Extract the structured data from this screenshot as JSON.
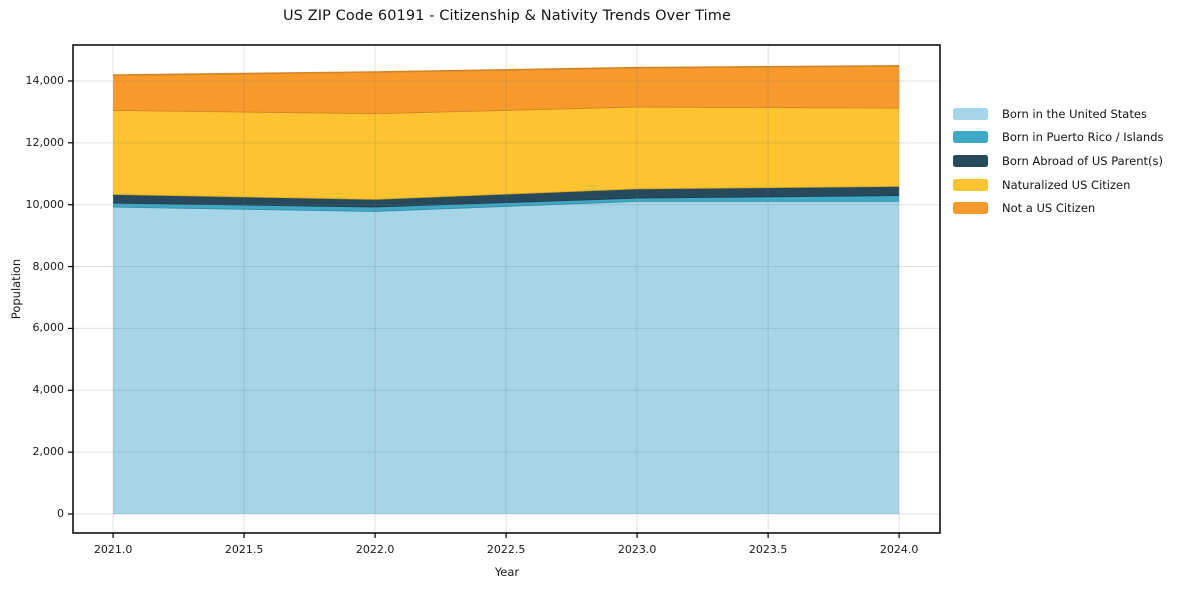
{
  "chart_data": {
    "type": "area",
    "stacked": true,
    "title": "US ZIP Code 60191 - Citizenship & Nativity Trends Over Time",
    "xlabel": "Year",
    "ylabel": "Population",
    "x": [
      2021,
      2022,
      2023,
      2024
    ],
    "series": [
      {
        "name": "Born in the United States",
        "color": "#a6d5e8",
        "values": [
          9935,
          9795,
          10120,
          10120
        ]
      },
      {
        "name": "Born in Puerto Rico / Islands",
        "color": "#3fa8c4",
        "values": [
          130,
          140,
          105,
          185
        ]
      },
      {
        "name": "Born Abroad of US Parent(s)",
        "color": "#27495c",
        "values": [
          280,
          250,
          300,
          300
        ]
      },
      {
        "name": "Naturalized US Citizen",
        "color": "#fdc330",
        "values": [
          2715,
          2770,
          2645,
          2530
        ]
      },
      {
        "name": "Not a US Citizen",
        "color": "#f89a2b",
        "values": [
          1130,
          1335,
          1260,
          1355
        ]
      }
    ],
    "xticks": {
      "values": [
        2021.0,
        2021.5,
        2022.0,
        2022.5,
        2023.0,
        2023.5,
        2024.0
      ],
      "labels": [
        "2021.0",
        "2021.5",
        "2022.0",
        "2022.5",
        "2023.0",
        "2023.5",
        "2024.0"
      ]
    },
    "yticks": {
      "values": [
        0,
        2000,
        4000,
        6000,
        8000,
        10000,
        12000,
        14000
      ],
      "labels": [
        "0",
        "2,000",
        "4,000",
        "6,000",
        "8,000",
        "10,000",
        "12,000",
        "14,000"
      ]
    },
    "xlim": [
      2020.847,
      2024.156
    ],
    "ylim": [
      -614,
      15163
    ],
    "grid": true,
    "legend_position": "right of axes"
  },
  "style": {
    "background": "#ffffff",
    "spine_color": "#000000",
    "grid_color": "#7d7d7d",
    "text_color": "#1a1a1a"
  }
}
